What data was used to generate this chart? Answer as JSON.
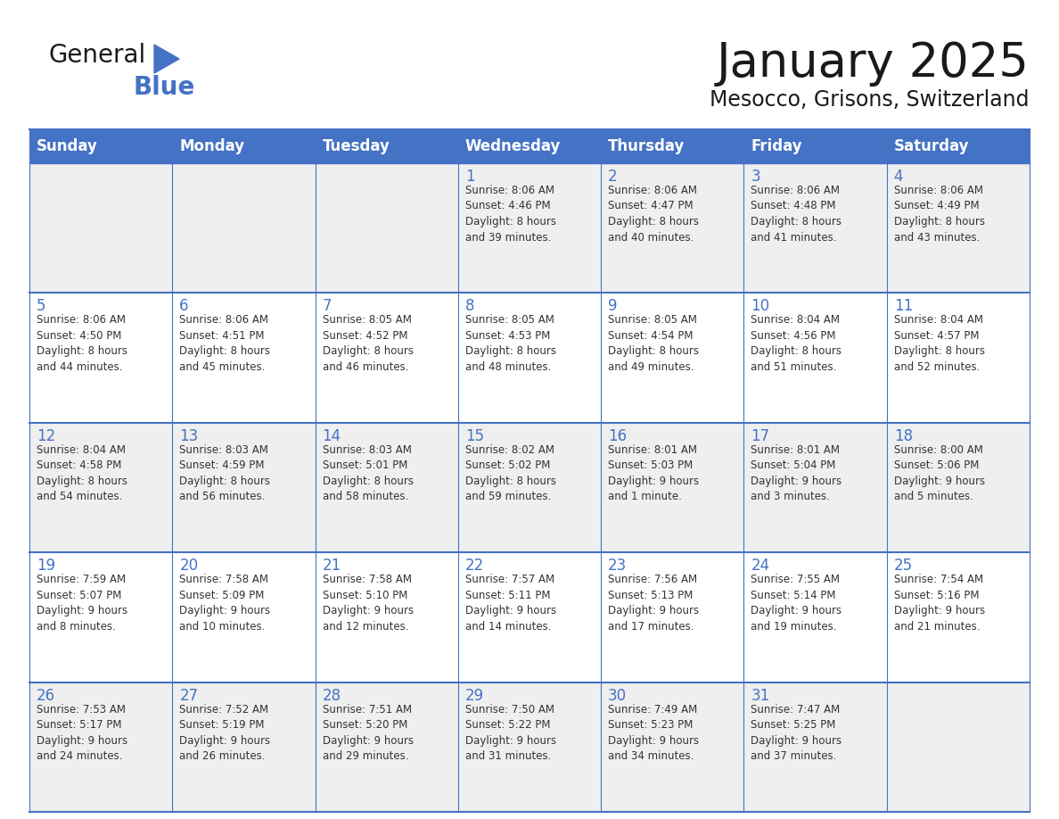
{
  "title": "January 2025",
  "subtitle": "Mesocco, Grisons, Switzerland",
  "header_color": "#4472C4",
  "header_text_color": "#FFFFFF",
  "cell_bg_even": "#EFEFEF",
  "cell_bg_odd": "#FFFFFF",
  "cell_border_color": "#4472C4",
  "day_number_color": "#4472C4",
  "cell_text_color": "#333333",
  "days_of_week": [
    "Sunday",
    "Monday",
    "Tuesday",
    "Wednesday",
    "Thursday",
    "Friday",
    "Saturday"
  ],
  "weeks": [
    [
      {
        "day": "",
        "text": ""
      },
      {
        "day": "",
        "text": ""
      },
      {
        "day": "",
        "text": ""
      },
      {
        "day": "1",
        "text": "Sunrise: 8:06 AM\nSunset: 4:46 PM\nDaylight: 8 hours\nand 39 minutes."
      },
      {
        "day": "2",
        "text": "Sunrise: 8:06 AM\nSunset: 4:47 PM\nDaylight: 8 hours\nand 40 minutes."
      },
      {
        "day": "3",
        "text": "Sunrise: 8:06 AM\nSunset: 4:48 PM\nDaylight: 8 hours\nand 41 minutes."
      },
      {
        "day": "4",
        "text": "Sunrise: 8:06 AM\nSunset: 4:49 PM\nDaylight: 8 hours\nand 43 minutes."
      }
    ],
    [
      {
        "day": "5",
        "text": "Sunrise: 8:06 AM\nSunset: 4:50 PM\nDaylight: 8 hours\nand 44 minutes."
      },
      {
        "day": "6",
        "text": "Sunrise: 8:06 AM\nSunset: 4:51 PM\nDaylight: 8 hours\nand 45 minutes."
      },
      {
        "day": "7",
        "text": "Sunrise: 8:05 AM\nSunset: 4:52 PM\nDaylight: 8 hours\nand 46 minutes."
      },
      {
        "day": "8",
        "text": "Sunrise: 8:05 AM\nSunset: 4:53 PM\nDaylight: 8 hours\nand 48 minutes."
      },
      {
        "day": "9",
        "text": "Sunrise: 8:05 AM\nSunset: 4:54 PM\nDaylight: 8 hours\nand 49 minutes."
      },
      {
        "day": "10",
        "text": "Sunrise: 8:04 AM\nSunset: 4:56 PM\nDaylight: 8 hours\nand 51 minutes."
      },
      {
        "day": "11",
        "text": "Sunrise: 8:04 AM\nSunset: 4:57 PM\nDaylight: 8 hours\nand 52 minutes."
      }
    ],
    [
      {
        "day": "12",
        "text": "Sunrise: 8:04 AM\nSunset: 4:58 PM\nDaylight: 8 hours\nand 54 minutes."
      },
      {
        "day": "13",
        "text": "Sunrise: 8:03 AM\nSunset: 4:59 PM\nDaylight: 8 hours\nand 56 minutes."
      },
      {
        "day": "14",
        "text": "Sunrise: 8:03 AM\nSunset: 5:01 PM\nDaylight: 8 hours\nand 58 minutes."
      },
      {
        "day": "15",
        "text": "Sunrise: 8:02 AM\nSunset: 5:02 PM\nDaylight: 8 hours\nand 59 minutes."
      },
      {
        "day": "16",
        "text": "Sunrise: 8:01 AM\nSunset: 5:03 PM\nDaylight: 9 hours\nand 1 minute."
      },
      {
        "day": "17",
        "text": "Sunrise: 8:01 AM\nSunset: 5:04 PM\nDaylight: 9 hours\nand 3 minutes."
      },
      {
        "day": "18",
        "text": "Sunrise: 8:00 AM\nSunset: 5:06 PM\nDaylight: 9 hours\nand 5 minutes."
      }
    ],
    [
      {
        "day": "19",
        "text": "Sunrise: 7:59 AM\nSunset: 5:07 PM\nDaylight: 9 hours\nand 8 minutes."
      },
      {
        "day": "20",
        "text": "Sunrise: 7:58 AM\nSunset: 5:09 PM\nDaylight: 9 hours\nand 10 minutes."
      },
      {
        "day": "21",
        "text": "Sunrise: 7:58 AM\nSunset: 5:10 PM\nDaylight: 9 hours\nand 12 minutes."
      },
      {
        "day": "22",
        "text": "Sunrise: 7:57 AM\nSunset: 5:11 PM\nDaylight: 9 hours\nand 14 minutes."
      },
      {
        "day": "23",
        "text": "Sunrise: 7:56 AM\nSunset: 5:13 PM\nDaylight: 9 hours\nand 17 minutes."
      },
      {
        "day": "24",
        "text": "Sunrise: 7:55 AM\nSunset: 5:14 PM\nDaylight: 9 hours\nand 19 minutes."
      },
      {
        "day": "25",
        "text": "Sunrise: 7:54 AM\nSunset: 5:16 PM\nDaylight: 9 hours\nand 21 minutes."
      }
    ],
    [
      {
        "day": "26",
        "text": "Sunrise: 7:53 AM\nSunset: 5:17 PM\nDaylight: 9 hours\nand 24 minutes."
      },
      {
        "day": "27",
        "text": "Sunrise: 7:52 AM\nSunset: 5:19 PM\nDaylight: 9 hours\nand 26 minutes."
      },
      {
        "day": "28",
        "text": "Sunrise: 7:51 AM\nSunset: 5:20 PM\nDaylight: 9 hours\nand 29 minutes."
      },
      {
        "day": "29",
        "text": "Sunrise: 7:50 AM\nSunset: 5:22 PM\nDaylight: 9 hours\nand 31 minutes."
      },
      {
        "day": "30",
        "text": "Sunrise: 7:49 AM\nSunset: 5:23 PM\nDaylight: 9 hours\nand 34 minutes."
      },
      {
        "day": "31",
        "text": "Sunrise: 7:47 AM\nSunset: 5:25 PM\nDaylight: 9 hours\nand 37 minutes."
      },
      {
        "day": "",
        "text": ""
      }
    ]
  ],
  "logo_text_general": "General",
  "logo_text_blue": "Blue",
  "logo_color_general": "#1a1a1a",
  "logo_color_blue": "#4472C4",
  "logo_triangle_color": "#4472C4",
  "title_fontsize": 38,
  "subtitle_fontsize": 17,
  "header_fontsize": 12,
  "day_num_fontsize": 12,
  "cell_text_fontsize": 8.5
}
